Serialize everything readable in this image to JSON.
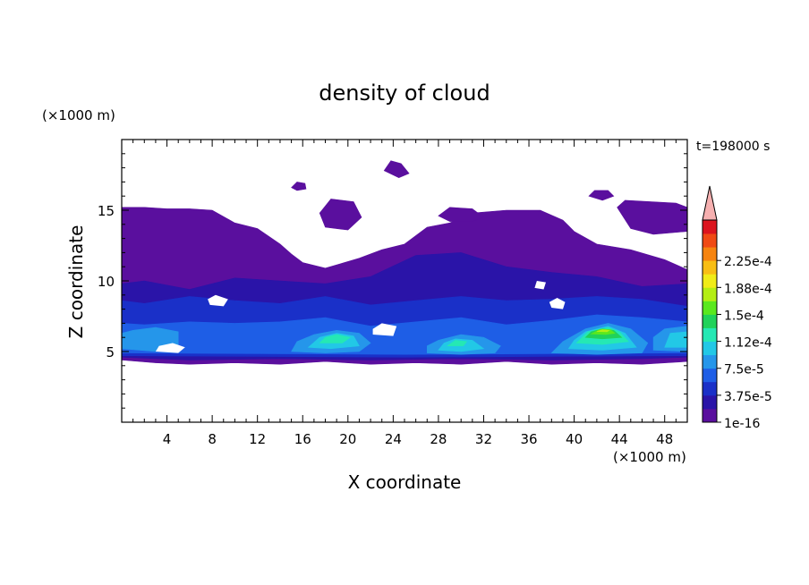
{
  "chart_data": {
    "type": "heatmap",
    "title": "density of cloud",
    "xlabel": "X coordinate",
    "ylabel": "Z coordinate",
    "x_unit": "(×1000 m)",
    "y_unit": "(×1000 m)",
    "time_label": "t=198000 s",
    "xlim": [
      0,
      50
    ],
    "ylim": [
      0,
      20
    ],
    "x_ticks": [
      4,
      8,
      12,
      16,
      20,
      24,
      28,
      32,
      36,
      40,
      44,
      48
    ],
    "y_ticks": [
      5,
      10,
      15
    ],
    "colorbar": {
      "labels": [
        "1e-16",
        "3.75e-5",
        "7.5e-5",
        "1.12e-4",
        "1.5e-4",
        "1.88e-4",
        "2.25e-4"
      ],
      "label_values": [
        1e-16,
        3.75e-05,
        7.5e-05,
        0.000112,
        0.00015,
        0.000188,
        0.000225
      ],
      "colors": [
        "#5a0f9e",
        "#2a14a8",
        "#1a30c8",
        "#1e5ee6",
        "#2596ea",
        "#22c8e6",
        "#25e8b4",
        "#20d25a",
        "#5ae81e",
        "#b4ee14",
        "#f0ec18",
        "#f8be14",
        "#f6840f",
        "#f04a14",
        "#dc141e"
      ],
      "extend_color": "#f6b0b0"
    },
    "regions": [
      {
        "level": 0,
        "polygon": [
          [
            0,
            4.4
          ],
          [
            3,
            4.2
          ],
          [
            6,
            4.1
          ],
          [
            10,
            4.2
          ],
          [
            14,
            4.1
          ],
          [
            18,
            4.3
          ],
          [
            22,
            4.1
          ],
          [
            26,
            4.2
          ],
          [
            30,
            4.1
          ],
          [
            34,
            4.3
          ],
          [
            38,
            4.1
          ],
          [
            42,
            4.2
          ],
          [
            46,
            4.1
          ],
          [
            50,
            4.3
          ],
          [
            50,
            10.8
          ],
          [
            48,
            11.5
          ],
          [
            45,
            12.2
          ],
          [
            42,
            12.6
          ],
          [
            40,
            13.5
          ],
          [
            39,
            14.3
          ],
          [
            37,
            15
          ],
          [
            34,
            15
          ],
          [
            31,
            14.8
          ],
          [
            29,
            14.1
          ],
          [
            27,
            13.8
          ],
          [
            25,
            12.6
          ],
          [
            23,
            12.2
          ],
          [
            21,
            11.6
          ],
          [
            18,
            10.9
          ],
          [
            16,
            11.3
          ],
          [
            15,
            11.9
          ],
          [
            14,
            12.6
          ],
          [
            12,
            13.7
          ],
          [
            10,
            14.1
          ],
          [
            8,
            15
          ],
          [
            6,
            15.1
          ],
          [
            4,
            15.1
          ],
          [
            2,
            15.2
          ],
          [
            0,
            15.2
          ]
        ]
      },
      {
        "level": 0,
        "polygon": [
          [
            28,
            14.6
          ],
          [
            29,
            15.2
          ],
          [
            31,
            15.1
          ],
          [
            32,
            14.5
          ],
          [
            31,
            14.2
          ],
          [
            29,
            14.2
          ]
        ]
      },
      {
        "level": 0,
        "polygon": [
          [
            43.8,
            15.2
          ],
          [
            44.5,
            15.7
          ],
          [
            49,
            15.5
          ],
          [
            50,
            15.2
          ],
          [
            50,
            13.5
          ],
          [
            47,
            13.3
          ],
          [
            45,
            13.7
          ]
        ]
      },
      {
        "level": 0,
        "polygon": [
          [
            17.5,
            14.8
          ],
          [
            18.5,
            15.8
          ],
          [
            20.5,
            15.6
          ],
          [
            21.2,
            14.5
          ],
          [
            20,
            13.6
          ],
          [
            18,
            13.8
          ]
        ]
      },
      {
        "level": 0,
        "polygon": [
          [
            23.2,
            17.8
          ],
          [
            23.8,
            18.5
          ],
          [
            24.7,
            18.3
          ],
          [
            25.4,
            17.6
          ],
          [
            24.5,
            17.3
          ]
        ]
      },
      {
        "level": 0,
        "polygon": [
          [
            41.3,
            16
          ],
          [
            41.8,
            16.4
          ],
          [
            43,
            16.4
          ],
          [
            43.5,
            16
          ],
          [
            42.5,
            15.7
          ]
        ]
      },
      {
        "level": 0,
        "polygon": [
          [
            15,
            16.6
          ],
          [
            15.5,
            17
          ],
          [
            16.2,
            16.9
          ],
          [
            16.3,
            16.5
          ],
          [
            15.5,
            16.4
          ]
        ]
      },
      {
        "level": 1,
        "polygon": [
          [
            0,
            4.6
          ],
          [
            6,
            4.4
          ],
          [
            14,
            4.5
          ],
          [
            22,
            4.4
          ],
          [
            30,
            4.5
          ],
          [
            38,
            4.4
          ],
          [
            46,
            4.5
          ],
          [
            50,
            4.6
          ],
          [
            50,
            9.8
          ],
          [
            46,
            9.6
          ],
          [
            42,
            10.3
          ],
          [
            38,
            10.6
          ],
          [
            34,
            11
          ],
          [
            30,
            12
          ],
          [
            26,
            11.8
          ],
          [
            22,
            10.3
          ],
          [
            18,
            9.8
          ],
          [
            14,
            10
          ],
          [
            10,
            10.2
          ],
          [
            6,
            9.4
          ],
          [
            2,
            10
          ],
          [
            0,
            9.8
          ]
        ]
      },
      {
        "level": 2,
        "polygon": [
          [
            0,
            4.7
          ],
          [
            25,
            4.6
          ],
          [
            50,
            4.7
          ],
          [
            50,
            8.2
          ],
          [
            46,
            8.7
          ],
          [
            42,
            8.9
          ],
          [
            38,
            8.7
          ],
          [
            34,
            8.6
          ],
          [
            30,
            8.9
          ],
          [
            26,
            8.6
          ],
          [
            22,
            8.3
          ],
          [
            18,
            8.9
          ],
          [
            14,
            8.4
          ],
          [
            10,
            8.6
          ],
          [
            6,
            8.9
          ],
          [
            2,
            8.4
          ],
          [
            0,
            8.6
          ]
        ]
      },
      {
        "level": 3,
        "polygon": [
          [
            0,
            4.9
          ],
          [
            25,
            4.8
          ],
          [
            50,
            4.9
          ],
          [
            50,
            7.1
          ],
          [
            46,
            7.4
          ],
          [
            42,
            7.6
          ],
          [
            38,
            7.2
          ],
          [
            34,
            6.9
          ],
          [
            30,
            7.4
          ],
          [
            26,
            7.1
          ],
          [
            22,
            6.8
          ],
          [
            18,
            7.4
          ],
          [
            14,
            7.1
          ],
          [
            10,
            7
          ],
          [
            6,
            7.1
          ],
          [
            2,
            6.9
          ],
          [
            0,
            7
          ]
        ]
      },
      {
        "level": 4,
        "polygon": [
          [
            0,
            5.2
          ],
          [
            3,
            5
          ],
          [
            5,
            5.2
          ],
          [
            5,
            6.4
          ],
          [
            3,
            6.7
          ],
          [
            1,
            6.5
          ],
          [
            0,
            6.3
          ]
        ]
      },
      {
        "level": 4,
        "polygon": [
          [
            15,
            5
          ],
          [
            18,
            4.9
          ],
          [
            21,
            5
          ],
          [
            22,
            5.6
          ],
          [
            21,
            6.3
          ],
          [
            19,
            6.5
          ],
          [
            17,
            6.2
          ],
          [
            15.5,
            5.7
          ]
        ]
      },
      {
        "level": 4,
        "polygon": [
          [
            27,
            4.9
          ],
          [
            30,
            4.8
          ],
          [
            33,
            4.9
          ],
          [
            33.5,
            5.4
          ],
          [
            32,
            6
          ],
          [
            30,
            6.2
          ],
          [
            28,
            5.8
          ],
          [
            27,
            5.4
          ]
        ]
      },
      {
        "level": 4,
        "polygon": [
          [
            38,
            4.9
          ],
          [
            42,
            4.8
          ],
          [
            46,
            4.9
          ],
          [
            46.5,
            5.6
          ],
          [
            45,
            6.6
          ],
          [
            43,
            7
          ],
          [
            41,
            6.6
          ],
          [
            39,
            5.7
          ]
        ]
      },
      {
        "level": 4,
        "polygon": [
          [
            47,
            5.1
          ],
          [
            50,
            5
          ],
          [
            50,
            6.8
          ],
          [
            48,
            6.6
          ],
          [
            47,
            6
          ]
        ]
      },
      {
        "level": 5,
        "polygon": [
          [
            16.5,
            5.3
          ],
          [
            18.5,
            5.2
          ],
          [
            21,
            5.4
          ],
          [
            20.5,
            6.1
          ],
          [
            19,
            6.3
          ],
          [
            17.5,
            6
          ]
        ]
      },
      {
        "level": 5,
        "polygon": [
          [
            28,
            5.1
          ],
          [
            30,
            5
          ],
          [
            32,
            5.2
          ],
          [
            31,
            5.8
          ],
          [
            29.5,
            5.9
          ],
          [
            28.5,
            5.6
          ]
        ]
      },
      {
        "level": 5,
        "polygon": [
          [
            39.5,
            5.2
          ],
          [
            42.5,
            5.1
          ],
          [
            45.5,
            5.3
          ],
          [
            44.5,
            6.3
          ],
          [
            43,
            6.8
          ],
          [
            41,
            6.4
          ],
          [
            40,
            5.8
          ]
        ]
      },
      {
        "level": 5,
        "polygon": [
          [
            48,
            5.3
          ],
          [
            50,
            5.3
          ],
          [
            50,
            6.4
          ],
          [
            48.5,
            6.3
          ]
        ]
      },
      {
        "level": 6,
        "polygon": [
          [
            17.5,
            5.6
          ],
          [
            19.5,
            5.6
          ],
          [
            20.2,
            6
          ],
          [
            19,
            6.2
          ],
          [
            18,
            6
          ]
        ]
      },
      {
        "level": 6,
        "polygon": [
          [
            40.2,
            5.6
          ],
          [
            42.5,
            5.5
          ],
          [
            44.8,
            5.7
          ],
          [
            44,
            6.4
          ],
          [
            43,
            6.7
          ],
          [
            41.2,
            6.4
          ]
        ]
      },
      {
        "level": 6,
        "polygon": [
          [
            28.8,
            5.4
          ],
          [
            30.2,
            5.4
          ],
          [
            30.5,
            5.7
          ],
          [
            29.5,
            5.8
          ]
        ]
      },
      {
        "level": 7,
        "polygon": [
          [
            41,
            6
          ],
          [
            42.5,
            5.9
          ],
          [
            44.2,
            6
          ],
          [
            43.5,
            6.5
          ],
          [
            42.5,
            6.6
          ],
          [
            41.5,
            6.4
          ]
        ]
      },
      {
        "level": 8,
        "polygon": [
          [
            41.5,
            6.25
          ],
          [
            42.8,
            6.2
          ],
          [
            43.6,
            6.3
          ],
          [
            43.2,
            6.55
          ],
          [
            42.3,
            6.58
          ]
        ]
      },
      {
        "level": 9,
        "polygon": [
          [
            42,
            6.42
          ],
          [
            42.9,
            6.4
          ],
          [
            43.1,
            6.5
          ],
          [
            42.5,
            6.55
          ]
        ]
      }
    ],
    "gaps": [
      {
        "polygon": [
          [
            3,
            5
          ],
          [
            5,
            4.9
          ],
          [
            5.6,
            5.3
          ],
          [
            4.5,
            5.6
          ],
          [
            3.3,
            5.4
          ]
        ]
      },
      {
        "polygon": [
          [
            22.2,
            6.2
          ],
          [
            24,
            6.1
          ],
          [
            24.3,
            6.8
          ],
          [
            23,
            7
          ],
          [
            22.2,
            6.6
          ]
        ]
      },
      {
        "polygon": [
          [
            7.8,
            8.3
          ],
          [
            9,
            8.2
          ],
          [
            9.4,
            8.7
          ],
          [
            8.3,
            9
          ],
          [
            7.6,
            8.7
          ]
        ]
      },
      {
        "polygon": [
          [
            38,
            8.1
          ],
          [
            39,
            8
          ],
          [
            39.2,
            8.5
          ],
          [
            38.5,
            8.8
          ],
          [
            37.8,
            8.5
          ]
        ]
      },
      {
        "polygon": [
          [
            36.5,
            9.5
          ],
          [
            37.3,
            9.4
          ],
          [
            37.5,
            9.9
          ],
          [
            36.7,
            10
          ]
        ]
      }
    ]
  }
}
